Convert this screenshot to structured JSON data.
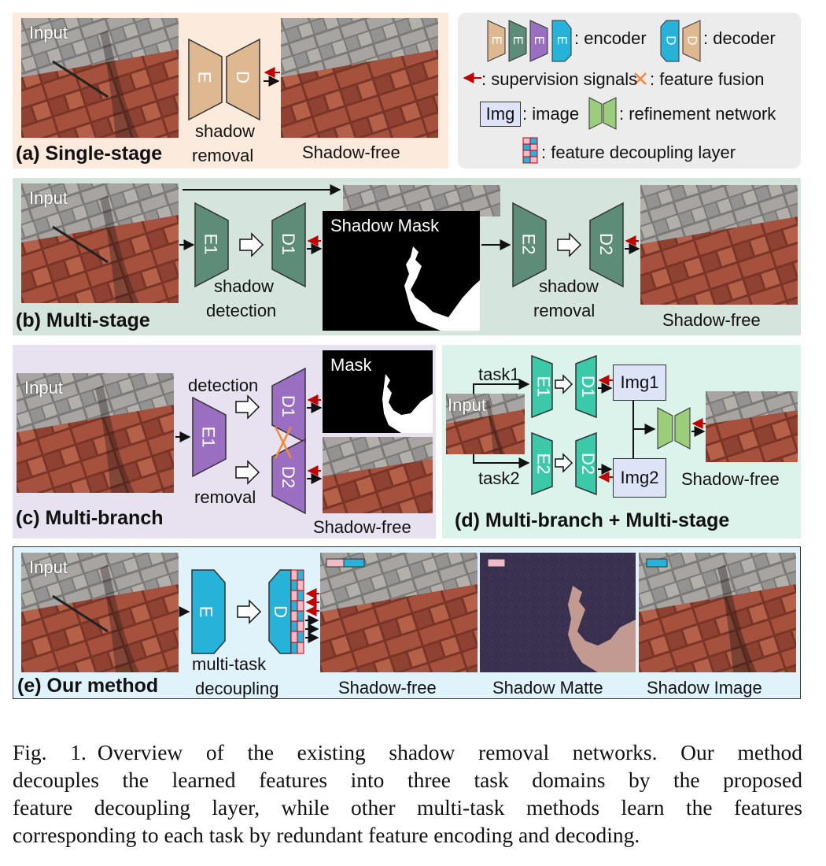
{
  "panels": {
    "a": {
      "title": "(a) Single-stage",
      "input_label": "Input",
      "encoder": "E",
      "decoder": "D",
      "task_line1": "shadow",
      "task_line2": "removal",
      "output_label": "Shadow-free"
    },
    "b": {
      "title": "(b) Multi-stage",
      "input_label": "Input",
      "enc1": "E1",
      "dec1": "D1",
      "task1_line1": "shadow",
      "task1_line2": "detection",
      "mask_label": "Shadow Mask",
      "enc2": "E2",
      "dec2": "D2",
      "task2_line1": "shadow",
      "task2_line2": "removal",
      "output_label": "Shadow-free"
    },
    "c": {
      "title": "(c) Multi-branch",
      "input_label": "Input",
      "enc": "E1",
      "dec1": "D1",
      "dec2": "D2",
      "branch1": "detection",
      "branch2": "removal",
      "mask_label": "Mask",
      "output_label": "Shadow-free"
    },
    "d": {
      "title": "(d) Multi-branch + Multi-stage",
      "input_label": "Input",
      "task1": "task1",
      "task2": "task2",
      "enc1": "E1",
      "dec1": "D1",
      "enc2": "E2",
      "dec2": "D2",
      "img1": "Img1",
      "img2": "Img2",
      "output_label": "Shadow-free"
    },
    "e": {
      "title": "(e) Our method",
      "input_label": "Input",
      "enc": "E",
      "dec": "D",
      "task_line1": "multi-task",
      "task_line2": "decoupling",
      "out1": "Shadow-free",
      "out2": "Shadow Matte",
      "out3": "Shadow Image"
    }
  },
  "legend": {
    "encoder_text": ": encoder",
    "decoder_text": ": decoder",
    "supervision_text": ": supervision signals",
    "fusion_text": ": feature fusion",
    "image_box": "Img",
    "image_text": ": image",
    "refinement_text": ": refinement network",
    "decoupling_text": ": feature decoupling layer",
    "encoder_letter": "E",
    "decoder_letter": "D"
  },
  "colors": {
    "tan": "#ddb891",
    "green": "#5d8c78",
    "purple": "#9a6fc1",
    "blue": "#27b3d9",
    "teal": "#3cc9a9",
    "lightgreen": "#9ccd7d",
    "pink": "#f2b9c9",
    "red": "#c00000",
    "orange": "#f08a3a"
  },
  "caption": {
    "line1": "Fig. 1.",
    "line1_rest": "Overview of the existing shadow removal networks. Our method",
    "line2": "decouples the learned features into three task domains by the proposed",
    "line3": "feature decoupling layer, while other multi-task methods learn the features",
    "line4": "corresponding to each task by redundant feature encoding and decoding."
  }
}
